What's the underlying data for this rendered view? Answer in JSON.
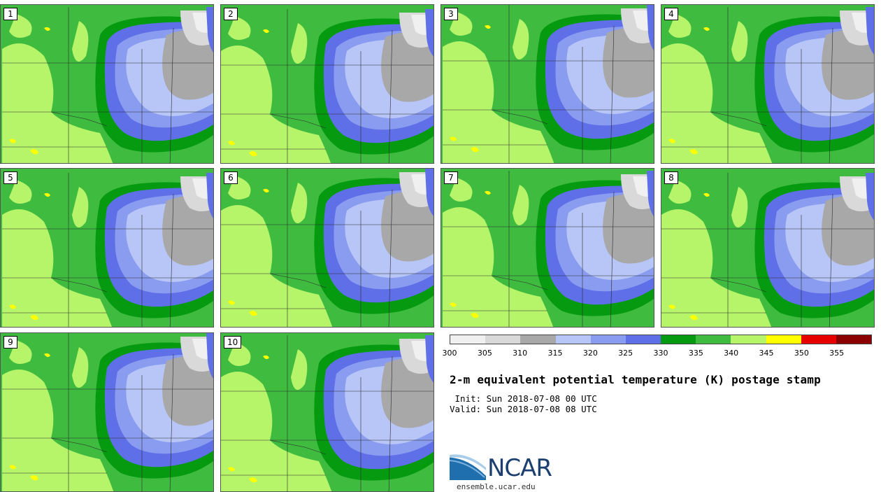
{
  "stamps": [
    {
      "label": "1"
    },
    {
      "label": "2"
    },
    {
      "label": "3"
    },
    {
      "label": "4"
    },
    {
      "label": "5"
    },
    {
      "label": "6"
    },
    {
      "label": "7"
    },
    {
      "label": "8"
    },
    {
      "label": "9"
    },
    {
      "label": "10"
    }
  ],
  "colorbar": {
    "colors": [
      "#f0f0f0",
      "#d9d9d9",
      "#a8a8a8",
      "#b8c6f7",
      "#8a9cf0",
      "#5f6fe8",
      "#059a10",
      "#3fbb3f",
      "#b6f56a",
      "#ffff00",
      "#e60000",
      "#8b0000"
    ],
    "ticks": [
      "300",
      "305",
      "310",
      "315",
      "320",
      "325",
      "330",
      "335",
      "340",
      "345",
      "350",
      "355"
    ]
  },
  "title": "2-m equivalent potential temperature (K) postage stamp",
  "init_line": " Init: Sun 2018-07-08 00 UTC",
  "valid_line": "Valid: Sun 2018-07-08 08 UTC",
  "logo": {
    "text": "NCAR",
    "url_text": "ensemble.ucar.edu"
  }
}
